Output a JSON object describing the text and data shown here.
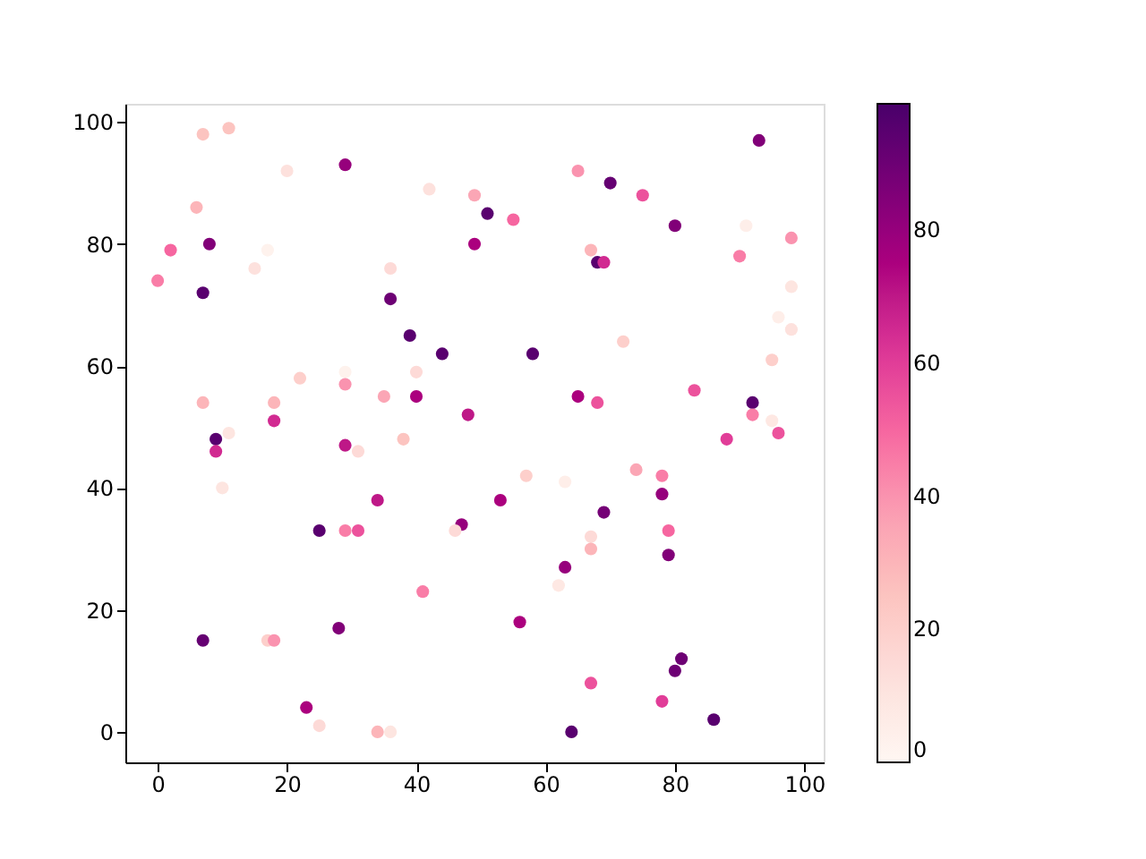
{
  "chart_data": {
    "type": "scatter",
    "x": [
      0,
      2,
      6,
      7,
      11,
      7,
      8,
      17,
      15,
      20,
      29,
      42,
      49,
      49,
      51,
      55,
      65,
      70,
      75,
      67,
      68,
      69,
      80,
      93,
      91,
      98,
      90,
      98,
      98,
      96,
      95,
      36,
      36,
      39,
      44,
      58,
      72,
      40,
      29,
      22,
      29,
      7,
      18,
      35,
      40,
      65,
      68,
      83,
      18,
      48,
      11,
      9,
      9,
      29,
      31,
      38,
      92,
      92,
      95,
      96,
      88,
      10,
      34,
      25,
      29,
      31,
      47,
      46,
      53,
      57,
      63,
      74,
      78,
      78,
      69,
      67,
      67,
      79,
      79,
      63,
      62,
      41,
      56,
      7,
      17,
      18,
      28,
      23,
      25,
      34,
      36,
      64,
      67,
      78,
      81,
      80,
      86
    ],
    "values": [
      74,
      79,
      86,
      98,
      99,
      72,
      80,
      79,
      76,
      92,
      93,
      89,
      88,
      80,
      85,
      84,
      92,
      90,
      88,
      79,
      77,
      77,
      83,
      97,
      83,
      81,
      78,
      73,
      66,
      68,
      61,
      76,
      71,
      65,
      62,
      62,
      64,
      59,
      59,
      58,
      57,
      54,
      54,
      55,
      55,
      55,
      54,
      56,
      51,
      52,
      49,
      48,
      46,
      47,
      46,
      48,
      54,
      52,
      51,
      49,
      48,
      40,
      38,
      33,
      33,
      33,
      34,
      33,
      38,
      42,
      41,
      43,
      42,
      39,
      36,
      32,
      30,
      33,
      29,
      27,
      24,
      23,
      18,
      15,
      15,
      15,
      17,
      4,
      1,
      0,
      0,
      0,
      8,
      5,
      12,
      10,
      2
    ],
    "cvalues": [
      45,
      50,
      30,
      25,
      25,
      95,
      85,
      3,
      12,
      12,
      80,
      12,
      35,
      75,
      95,
      50,
      40,
      92,
      55,
      30,
      95,
      65,
      85,
      85,
      5,
      40,
      45,
      10,
      12,
      5,
      20,
      15,
      90,
      95,
      95,
      95,
      20,
      15,
      3,
      20,
      40,
      30,
      30,
      35,
      75,
      75,
      55,
      55,
      65,
      70,
      10,
      95,
      65,
      70,
      15,
      25,
      95,
      45,
      8,
      55,
      60,
      10,
      70,
      95,
      45,
      55,
      80,
      15,
      75,
      20,
      5,
      35,
      45,
      80,
      88,
      15,
      30,
      50,
      85,
      80,
      8,
      45,
      75,
      92,
      20,
      40,
      85,
      75,
      15,
      30,
      10,
      95,
      55,
      60,
      90,
      90,
      95
    ],
    "xlim": [
      -5,
      103
    ],
    "ylim": [
      -5,
      103
    ],
    "xticks": [
      0,
      20,
      40,
      60,
      80,
      100
    ],
    "yticks": [
      0,
      20,
      40,
      60,
      80,
      100
    ],
    "clim": [
      0,
      99
    ],
    "cticks": [
      0,
      20,
      40,
      60,
      80
    ],
    "grid": false
  }
}
